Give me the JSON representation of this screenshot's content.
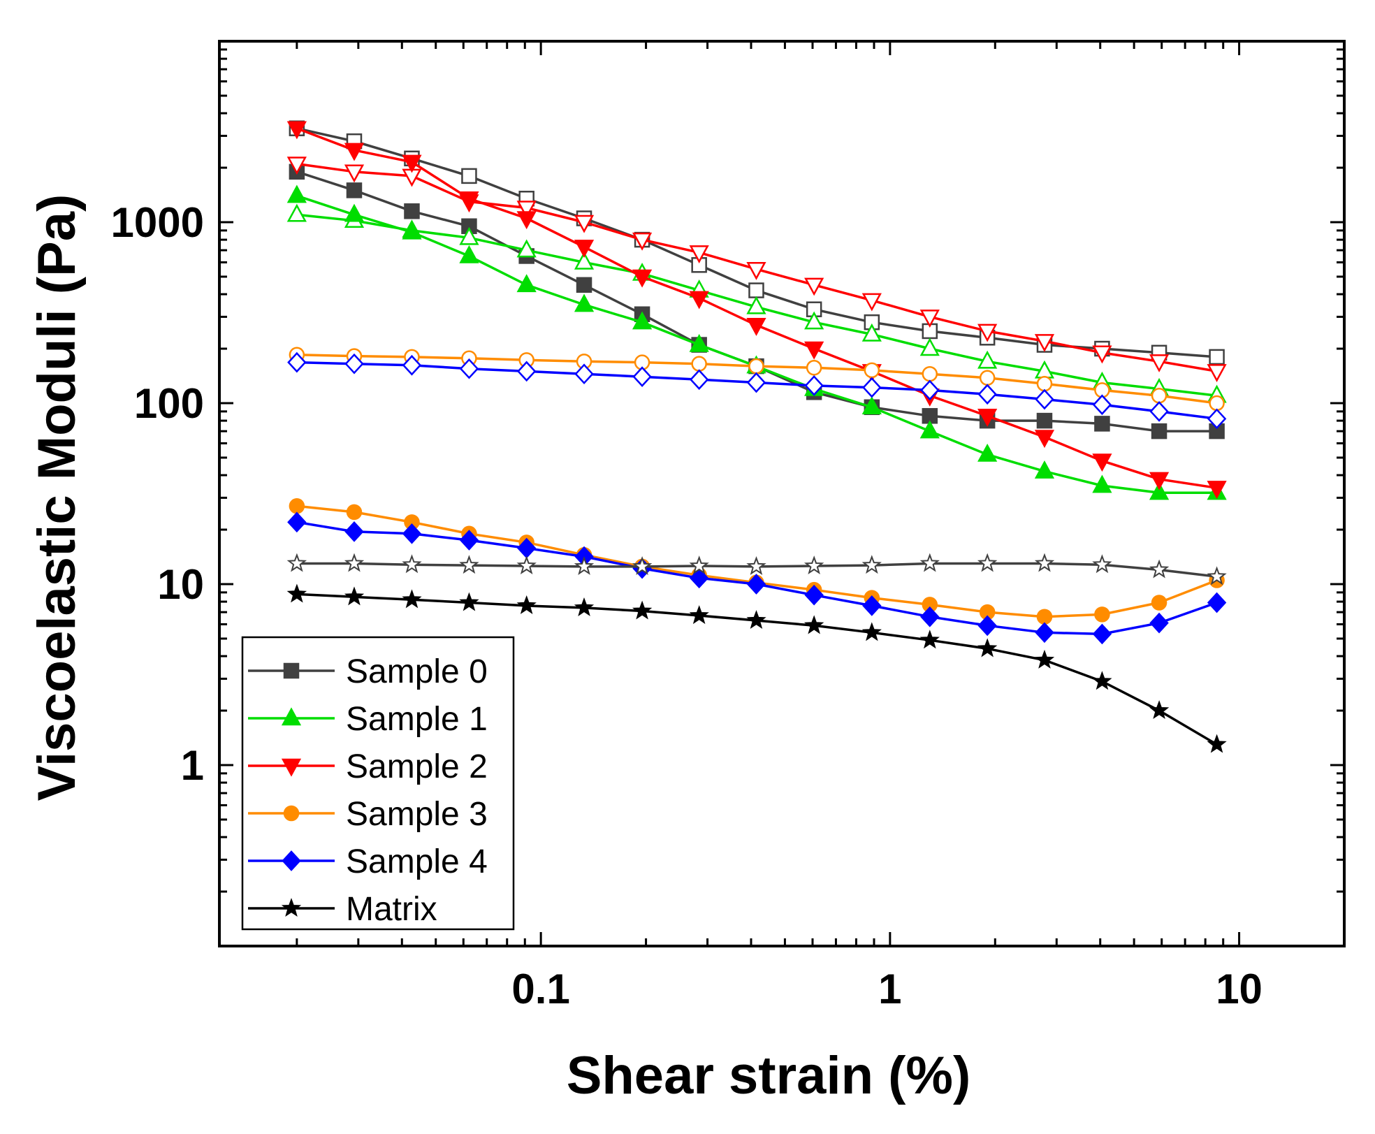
{
  "chart_data": {
    "type": "line",
    "title": "",
    "xlabel": "Shear strain (%)",
    "ylabel": "Viscoelastic Moduli (Pa)",
    "xscale": "log",
    "yscale": "log",
    "xlim": [
      0.012,
      20
    ],
    "ylim": [
      0.1,
      10000
    ],
    "xticks": [
      0.1,
      1,
      10
    ],
    "xtick_labels": [
      "0.1",
      "1",
      "10"
    ],
    "yticks": [
      1,
      10,
      100,
      1000
    ],
    "ytick_labels": [
      "1",
      "10",
      "100",
      "1000"
    ],
    "legend_position": "bottom-left",
    "x": [
      0.02,
      0.0292,
      0.0427,
      0.0623,
      0.091,
      0.133,
      0.195,
      0.284,
      0.414,
      0.606,
      0.887,
      1.3,
      1.9,
      2.77,
      4.05,
      5.9,
      8.63
    ],
    "series": [
      {
        "name": "Sample 0",
        "color": "#404040",
        "marker": "square",
        "legend": true,
        "filled": true,
        "values": [
          1900,
          1500,
          1150,
          950,
          650,
          450,
          310,
          210,
          160,
          115,
          95,
          85,
          80,
          80,
          77,
          70,
          70
        ]
      },
      {
        "name": "Sample 0 (open)",
        "color": "#404040",
        "marker": "square",
        "legend": false,
        "filled": false,
        "values": [
          3300,
          2800,
          2250,
          1800,
          1350,
          1050,
          800,
          580,
          420,
          330,
          280,
          250,
          230,
          210,
          200,
          190,
          180
        ]
      },
      {
        "name": "Sample 1",
        "color": "#00dd00",
        "marker": "triangle-up",
        "legend": true,
        "filled": true,
        "values": [
          1400,
          1100,
          880,
          650,
          450,
          350,
          280,
          210,
          160,
          120,
          95,
          70,
          52,
          42,
          35,
          32,
          32
        ]
      },
      {
        "name": "Sample 1 (open)",
        "color": "#00dd00",
        "marker": "triangle-up",
        "legend": false,
        "filled": false,
        "values": [
          1100,
          1020,
          900,
          820,
          700,
          600,
          520,
          420,
          340,
          280,
          240,
          200,
          170,
          150,
          130,
          120,
          110
        ]
      },
      {
        "name": "Sample 2",
        "color": "#ff0000",
        "marker": "triangle-down",
        "legend": true,
        "filled": true,
        "values": [
          3300,
          2500,
          2150,
          1350,
          1050,
          730,
          500,
          380,
          270,
          200,
          150,
          110,
          85,
          65,
          48,
          38,
          34
        ]
      },
      {
        "name": "Sample 2 (open)",
        "color": "#ff0000",
        "marker": "triangle-down",
        "legend": false,
        "filled": false,
        "values": [
          2100,
          1900,
          1800,
          1300,
          1200,
          1000,
          800,
          680,
          550,
          450,
          370,
          300,
          250,
          220,
          190,
          170,
          150
        ]
      },
      {
        "name": "Sample 3",
        "color": "#ff8c00",
        "marker": "circle",
        "legend": true,
        "filled": true,
        "values": [
          27,
          25,
          22,
          19,
          17,
          14.5,
          12.5,
          11.2,
          10.2,
          9.3,
          8.4,
          7.7,
          7.0,
          6.6,
          6.8,
          7.9,
          10.5
        ]
      },
      {
        "name": "Sample 3 (open)",
        "color": "#ff8c00",
        "marker": "circle",
        "legend": false,
        "filled": false,
        "values": [
          185,
          182,
          180,
          177,
          173,
          170,
          168,
          165,
          160,
          157,
          152,
          145,
          138,
          128,
          118,
          110,
          100
        ]
      },
      {
        "name": "Sample 4",
        "color": "#0000ff",
        "marker": "diamond",
        "legend": true,
        "filled": true,
        "values": [
          22,
          19.5,
          19,
          17.5,
          15.8,
          14.2,
          12.2,
          10.8,
          10.0,
          8.7,
          7.6,
          6.6,
          5.9,
          5.4,
          5.3,
          6.1,
          7.9
        ]
      },
      {
        "name": "Sample 4 (open)",
        "color": "#0000ff",
        "marker": "diamond",
        "legend": false,
        "filled": false,
        "values": [
          168,
          165,
          162,
          155,
          150,
          145,
          140,
          135,
          130,
          125,
          122,
          118,
          112,
          105,
          98,
          90,
          82
        ]
      },
      {
        "name": "Matrix",
        "color": "#000000",
        "marker": "star",
        "legend": true,
        "filled": true,
        "values": [
          8.8,
          8.5,
          8.2,
          7.9,
          7.6,
          7.4,
          7.1,
          6.7,
          6.3,
          5.9,
          5.4,
          4.9,
          4.4,
          3.8,
          2.9,
          2.0,
          1.3
        ]
      },
      {
        "name": "Matrix (open)",
        "color": "#404040",
        "marker": "star",
        "legend": false,
        "filled": false,
        "values": [
          13,
          13,
          12.8,
          12.7,
          12.6,
          12.5,
          12.5,
          12.6,
          12.5,
          12.6,
          12.7,
          13.0,
          13.0,
          13.0,
          12.8,
          12.0,
          11.0
        ]
      }
    ]
  }
}
